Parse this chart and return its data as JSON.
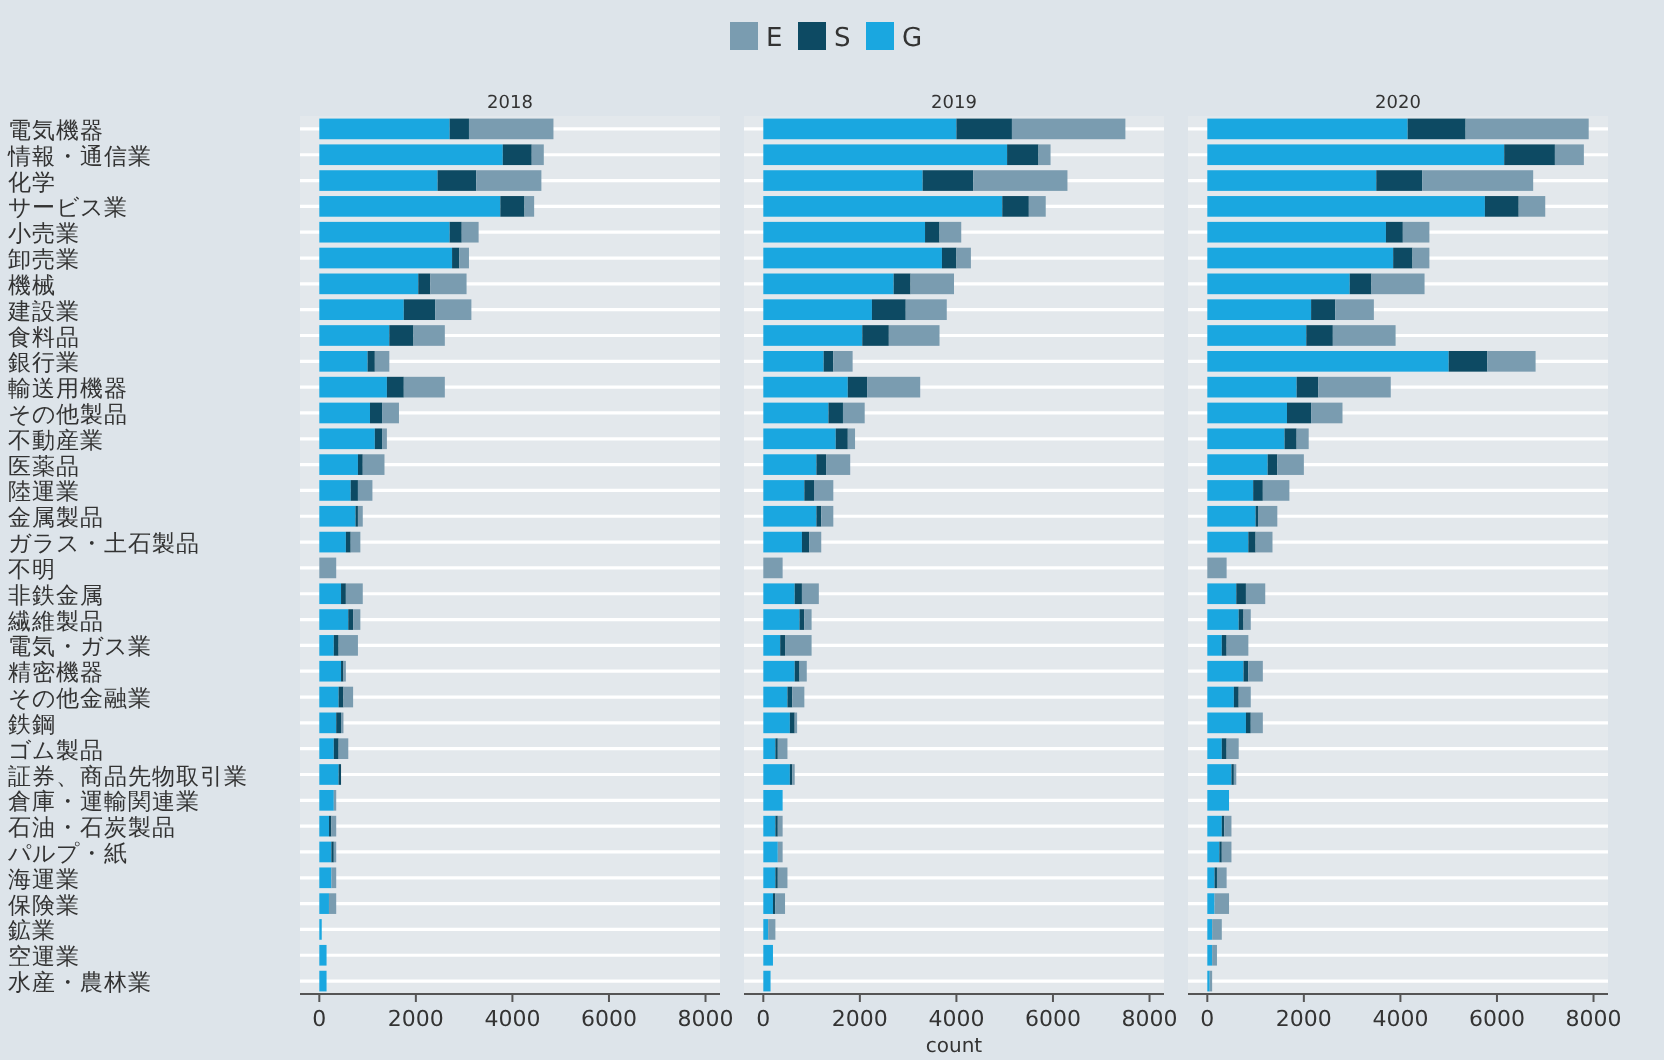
{
  "chart_data": [
    {
      "type": "bar",
      "orientation": "horizontal",
      "stacked": true,
      "title": "2018",
      "legend": "top",
      "grid": "y",
      "xlim": [
        -400,
        8300
      ],
      "xticks": [
        0,
        2000,
        4000,
        6000,
        8000
      ],
      "categories": [
        "電気機器",
        "情報・通信業",
        "化学",
        "サービス業",
        "小売業",
        "卸売業",
        "機械",
        "建設業",
        "食料品",
        "銀行業",
        "輸送用機器",
        "その他製品",
        "不動産業",
        "医薬品",
        "陸運業",
        "金属製品",
        "ガラス・土石製品",
        "不明",
        "非鉄金属",
        "繊維製品",
        "電気・ガス業",
        "精密機器",
        "その他金融業",
        "鉄鋼",
        "ゴム製品",
        "証券、商品先物取引業",
        "倉庫・運輸関連業",
        "石油・石炭製品",
        "パルプ・紙",
        "海運業",
        "保険業",
        "鉱業",
        "空運業",
        "水産・農林業"
      ],
      "series": [
        {
          "name": "G",
          "color": "#1aa7e0",
          "values": [
            2700,
            3800,
            2450,
            3750,
            2700,
            2750,
            2050,
            1750,
            1450,
            1000,
            1400,
            1050,
            1150,
            800,
            650,
            750,
            550,
            0,
            450,
            600,
            300,
            450,
            400,
            350,
            300,
            400,
            300,
            200,
            250,
            250,
            200,
            50,
            150,
            150
          ]
        },
        {
          "name": "S",
          "color": "#0d4a63",
          "values": [
            400,
            600,
            800,
            500,
            250,
            150,
            250,
            650,
            500,
            150,
            350,
            250,
            150,
            100,
            150,
            50,
            100,
            0,
            100,
            100,
            100,
            50,
            100,
            100,
            100,
            50,
            0,
            50,
            50,
            0,
            0,
            0,
            0,
            0
          ]
        },
        {
          "name": "E",
          "color": "#7a9cb0",
          "values": [
            1750,
            250,
            1350,
            200,
            350,
            200,
            750,
            750,
            650,
            300,
            850,
            350,
            100,
            450,
            300,
            100,
            200,
            350,
            350,
            150,
            400,
            50,
            200,
            50,
            200,
            0,
            50,
            100,
            50,
            100,
            150,
            0,
            0,
            0
          ]
        }
      ]
    },
    {
      "type": "bar",
      "orientation": "horizontal",
      "stacked": true,
      "title": "2019",
      "xlabel": "count",
      "grid": "y",
      "tick_labels": "x",
      "xlim": [
        -400,
        8300
      ],
      "xticks": [
        0,
        2000,
        4000,
        6000,
        8000
      ],
      "categories": [
        null,
        null,
        null,
        null,
        null,
        null,
        null,
        null,
        null,
        null,
        null,
        null,
        null,
        null,
        null,
        null,
        null,
        null,
        null,
        null,
        null,
        null,
        null,
        null,
        null,
        null,
        null,
        null,
        null,
        null,
        null,
        null,
        null,
        null
      ],
      "series": [
        {
          "color": "#1aa7e0",
          "values": [
            4000,
            5050,
            3300,
            4950,
            3350,
            3700,
            2700,
            2250,
            2050,
            1250,
            1750,
            1350,
            1500,
            1100,
            850,
            1100,
            800,
            0,
            650,
            750,
            350,
            650,
            500,
            550,
            250,
            550,
            400,
            250,
            300,
            250,
            200,
            100,
            200,
            150
          ]
        },
        {
          "color": "#0d4a63",
          "values": [
            1150,
            650,
            1050,
            550,
            300,
            300,
            350,
            700,
            550,
            200,
            400,
            300,
            250,
            200,
            200,
            100,
            150,
            0,
            150,
            100,
            100,
            100,
            100,
            100,
            50,
            50,
            0,
            50,
            0,
            50,
            50,
            0,
            0,
            0
          ]
        },
        {
          "color": "#7a9cb0",
          "values": [
            2350,
            250,
            1950,
            350,
            450,
            300,
            900,
            850,
            1050,
            400,
            1100,
            450,
            150,
            500,
            400,
            250,
            250,
            400,
            350,
            150,
            550,
            150,
            250,
            50,
            200,
            50,
            0,
            100,
            100,
            200,
            200,
            150,
            0,
            0
          ]
        }
      ]
    },
    {
      "type": "bar",
      "orientation": "horizontal",
      "stacked": true,
      "title": "2020",
      "grid": "y",
      "tick_labels": "x",
      "xlim": [
        -400,
        8300
      ],
      "xticks": [
        0,
        2000,
        4000,
        6000,
        8000
      ],
      "categories": [
        null,
        null,
        null,
        null,
        null,
        null,
        null,
        null,
        null,
        null,
        null,
        null,
        null,
        null,
        null,
        null,
        null,
        null,
        null,
        null,
        null,
        null,
        null,
        null,
        null,
        null,
        null,
        null,
        null,
        null,
        null,
        null,
        null,
        null
      ],
      "series": [
        {
          "color": "#1aa7e0",
          "values": [
            4150,
            6150,
            3500,
            5750,
            3700,
            3850,
            2950,
            2150,
            2050,
            5000,
            1850,
            1650,
            1600,
            1250,
            950,
            1000,
            850,
            0,
            600,
            650,
            300,
            750,
            550,
            800,
            300,
            500,
            450,
            300,
            250,
            150,
            150,
            100,
            100,
            50
          ]
        },
        {
          "color": "#0d4a63",
          "values": [
            1200,
            1050,
            950,
            700,
            350,
            400,
            450,
            500,
            550,
            800,
            450,
            500,
            250,
            200,
            200,
            50,
            150,
            0,
            200,
            100,
            100,
            100,
            100,
            100,
            100,
            50,
            0,
            50,
            50,
            50,
            0,
            0,
            0,
            0
          ]
        },
        {
          "color": "#7a9cb0",
          "values": [
            2550,
            600,
            2300,
            550,
            550,
            350,
            1100,
            800,
            1300,
            1000,
            1500,
            650,
            250,
            550,
            550,
            400,
            350,
            400,
            400,
            150,
            450,
            300,
            250,
            250,
            250,
            50,
            0,
            150,
            200,
            200,
            300,
            200,
            100,
            50
          ]
        }
      ]
    }
  ]
}
